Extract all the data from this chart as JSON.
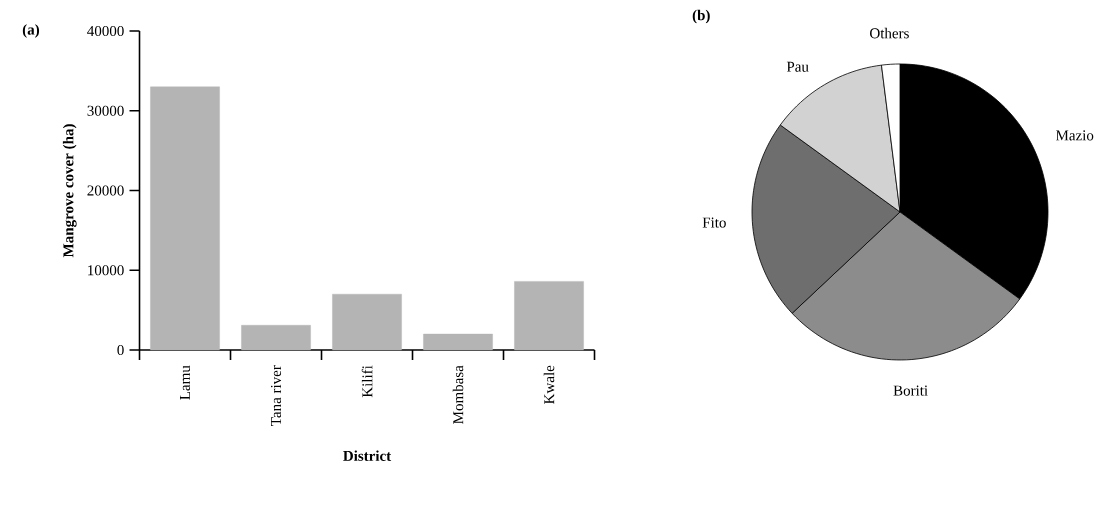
{
  "chart_data": [
    {
      "type": "bar",
      "title": "(a)",
      "xlabel": "District",
      "ylabel": "Mangrove cover (ha)",
      "categories": [
        "Lamu",
        "Tana river",
        "Kilifi",
        "Mombasa",
        "Kwale"
      ],
      "values": [
        33000,
        3100,
        7000,
        2000,
        8600
      ],
      "color": "#b4b4b4",
      "ylim": [
        0,
        40000
      ],
      "yticks": [
        0,
        10000,
        20000,
        30000,
        40000
      ]
    },
    {
      "type": "pie",
      "title": "(b)",
      "categories": [
        "Mazio",
        "Boriti",
        "Fito",
        "Pau",
        "Others"
      ],
      "values": [
        35,
        28,
        22,
        13,
        2
      ],
      "colors": [
        "#000000",
        "#8c8c8c",
        "#6e6e6e",
        "#d2d2d2",
        "#ffffff"
      ]
    }
  ]
}
